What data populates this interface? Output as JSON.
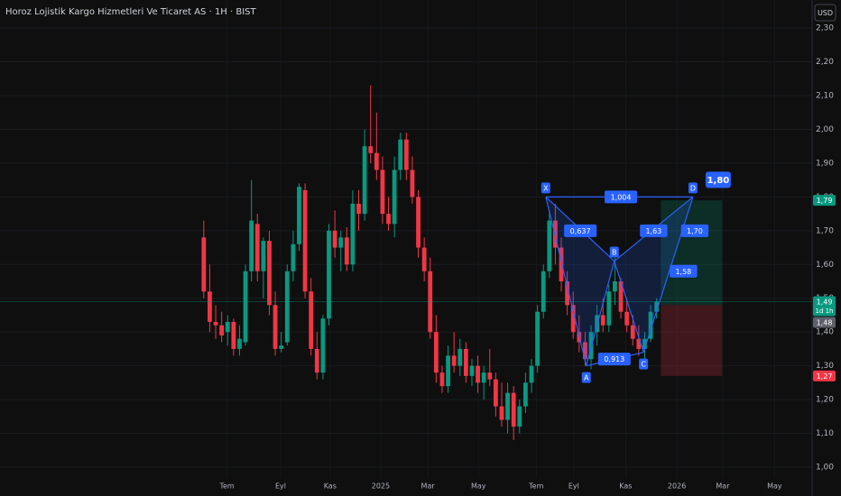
{
  "chart_data": {
    "type": "candlestick",
    "title": "Horoz Lojistik Kargo Hizmetleri Ve Ticaret AS · 1H · BIST",
    "currency": "USD",
    "up_color": "#089981",
    "down_color": "#f23645",
    "xlim": [
      -34.2,
      102.1
    ],
    "ylim": [
      0.968,
      2.383
    ],
    "grid": true,
    "x": [
      0,
      1,
      2,
      3,
      4,
      5,
      6,
      7,
      8,
      9,
      10,
      11,
      12,
      13,
      14,
      15,
      16,
      17,
      18,
      19,
      20,
      21,
      22,
      23,
      24,
      25,
      26,
      27,
      28,
      29,
      30,
      31,
      32,
      33,
      34,
      35,
      36,
      37,
      38,
      39,
      40,
      41,
      42,
      43,
      44,
      45,
      46,
      47,
      48,
      49,
      50,
      51,
      52,
      53,
      54,
      55,
      56,
      57,
      58,
      59,
      60,
      61,
      62,
      63,
      64,
      65,
      66,
      67,
      68,
      69,
      70,
      71,
      72,
      73,
      74,
      75,
      76
    ],
    "open": [
      1.68,
      1.52,
      1.43,
      1.42,
      1.4,
      1.43,
      1.35,
      1.37,
      1.58,
      1.72,
      1.58,
      1.67,
      1.48,
      1.35,
      1.37,
      1.58,
      1.66,
      1.82,
      1.52,
      1.35,
      1.28,
      1.44,
      1.7,
      1.65,
      1.68,
      1.6,
      1.78,
      1.75,
      1.95,
      1.93,
      1.88,
      1.75,
      1.72,
      1.88,
      1.97,
      1.88,
      1.8,
      1.65,
      1.58,
      1.4,
      1.28,
      1.24,
      1.33,
      1.3,
      1.35,
      1.27,
      1.3,
      1.25,
      1.28,
      1.26,
      1.18,
      1.14,
      1.22,
      1.12,
      1.18,
      1.25,
      1.3,
      1.46,
      1.58,
      1.73,
      1.65,
      1.55,
      1.48,
      1.4,
      1.37,
      1.32,
      1.4,
      1.45,
      1.42,
      1.52,
      1.55,
      1.46,
      1.42,
      1.38,
      1.35,
      1.38,
      1.46
    ],
    "high": [
      1.73,
      1.6,
      1.48,
      1.46,
      1.45,
      1.44,
      1.42,
      1.6,
      1.85,
      1.75,
      1.68,
      1.7,
      1.52,
      1.4,
      1.6,
      1.7,
      1.84,
      1.84,
      1.56,
      1.4,
      1.45,
      1.72,
      1.76,
      1.7,
      1.71,
      1.82,
      1.82,
      2.0,
      2.13,
      2.05,
      1.92,
      1.8,
      1.92,
      1.99,
      1.99,
      1.92,
      1.82,
      1.68,
      1.62,
      1.45,
      1.3,
      1.36,
      1.4,
      1.38,
      1.37,
      1.32,
      1.33,
      1.3,
      1.35,
      1.28,
      1.25,
      1.25,
      1.24,
      1.2,
      1.28,
      1.32,
      1.48,
      1.6,
      1.76,
      1.78,
      1.68,
      1.58,
      1.52,
      1.45,
      1.4,
      1.42,
      1.48,
      1.5,
      1.54,
      1.62,
      1.56,
      1.5,
      1.45,
      1.42,
      1.4,
      1.48,
      1.5
    ],
    "low": [
      1.5,
      1.4,
      1.38,
      1.37,
      1.36,
      1.33,
      1.33,
      1.36,
      1.55,
      1.55,
      1.5,
      1.45,
      1.33,
      1.34,
      1.36,
      1.55,
      1.64,
      1.5,
      1.33,
      1.26,
      1.26,
      1.42,
      1.62,
      1.58,
      1.58,
      1.58,
      1.7,
      1.73,
      1.9,
      1.85,
      1.72,
      1.7,
      1.68,
      1.85,
      1.85,
      1.78,
      1.62,
      1.55,
      1.38,
      1.25,
      1.22,
      1.22,
      1.28,
      1.27,
      1.25,
      1.24,
      1.22,
      1.2,
      1.24,
      1.15,
      1.12,
      1.1,
      1.08,
      1.1,
      1.16,
      1.22,
      1.28,
      1.44,
      1.56,
      1.6,
      1.52,
      1.45,
      1.38,
      1.34,
      1.3,
      1.29,
      1.36,
      1.4,
      1.4,
      1.48,
      1.44,
      1.4,
      1.36,
      1.33,
      1.32,
      1.37,
      1.44
    ],
    "close": [
      1.52,
      1.43,
      1.42,
      1.39,
      1.43,
      1.35,
      1.38,
      1.58,
      1.73,
      1.58,
      1.67,
      1.48,
      1.35,
      1.36,
      1.58,
      1.66,
      1.83,
      1.52,
      1.35,
      1.28,
      1.44,
      1.7,
      1.65,
      1.68,
      1.6,
      1.78,
      1.75,
      1.95,
      1.93,
      1.88,
      1.75,
      1.72,
      1.88,
      1.97,
      1.88,
      1.8,
      1.65,
      1.58,
      1.4,
      1.28,
      1.24,
      1.33,
      1.3,
      1.35,
      1.27,
      1.3,
      1.25,
      1.28,
      1.26,
      1.18,
      1.14,
      1.22,
      1.12,
      1.18,
      1.25,
      1.3,
      1.46,
      1.58,
      1.73,
      1.65,
      1.55,
      1.48,
      1.4,
      1.37,
      1.32,
      1.4,
      1.45,
      1.42,
      1.52,
      1.55,
      1.46,
      1.42,
      1.38,
      1.35,
      1.38,
      1.46,
      1.49
    ],
    "xticks": [
      {
        "value": 3.9,
        "label": "Tem"
      },
      {
        "value": 12.9,
        "label": "Eyl"
      },
      {
        "value": 21.2,
        "label": "Kas"
      },
      {
        "value": 29.7,
        "label": "2025"
      },
      {
        "value": 37.6,
        "label": "Mar"
      },
      {
        "value": 46.1,
        "label": "May"
      },
      {
        "value": 55.8,
        "label": "Tem"
      },
      {
        "value": 62.1,
        "label": "Eyl"
      },
      {
        "value": 70.8,
        "label": "Kas"
      },
      {
        "value": 79.4,
        "label": "2026"
      },
      {
        "value": 87.1,
        "label": "Mar"
      },
      {
        "value": 95.8,
        "label": "May"
      }
    ],
    "yticks": [
      {
        "value": 1.0,
        "label": "1,00"
      },
      {
        "value": 1.1,
        "label": "1,10"
      },
      {
        "value": 1.2,
        "label": "1,20"
      },
      {
        "value": 1.3,
        "label": "1,30"
      },
      {
        "value": 1.4,
        "label": "1,40"
      },
      {
        "value": 1.5,
        "label": "1,50"
      },
      {
        "value": 1.6,
        "label": "1,60"
      },
      {
        "value": 1.7,
        "label": "1,70"
      },
      {
        "value": 1.8,
        "label": "1,80"
      },
      {
        "value": 1.9,
        "label": "1,90"
      },
      {
        "value": 2.0,
        "label": "2,00"
      },
      {
        "value": 2.1,
        "label": "2,10"
      },
      {
        "value": 2.2,
        "label": "2,20"
      },
      {
        "value": 2.3,
        "label": "2,30"
      }
    ],
    "pattern": {
      "color": "#2962ff",
      "points": [
        {
          "name": "X",
          "x": 57.4,
          "y": 1.8
        },
        {
          "name": "A",
          "x": 64.2,
          "y": 1.3
        },
        {
          "name": "B",
          "x": 68.9,
          "y": 1.61
        },
        {
          "name": "C",
          "x": 73.8,
          "y": 1.34
        },
        {
          "name": "D",
          "x": 82.1,
          "y": 1.8
        }
      ],
      "ratios": [
        {
          "value": 1.004,
          "label": "1,004",
          "x": 70.0,
          "y": 1.8
        },
        {
          "value": 0.637,
          "label": "0,637",
          "x": 63.2,
          "y": 1.7
        },
        {
          "value": 1.63,
          "label": "1,63",
          "x": 75.5,
          "y": 1.7
        },
        {
          "value": 0.913,
          "label": "0,913",
          "x": 68.9,
          "y": 1.32
        },
        {
          "value": 1.7,
          "label": "1,70",
          "x": 82.4,
          "y": 1.7
        },
        {
          "value": 1.58,
          "label": "1,58",
          "x": 80.5,
          "y": 1.58
        }
      ],
      "target": {
        "value": 1.8,
        "label": "1,80"
      }
    },
    "position": {
      "x": [
        76.7,
        87.0
      ],
      "entry": 1.48,
      "target": 1.79,
      "stop": 1.27
    },
    "price_labels": [
      {
        "value": 1.79,
        "label": "1,79",
        "color": "#089981"
      },
      {
        "value": 1.49,
        "label": "1,49",
        "note": "1d 1h",
        "color": "#089981"
      },
      {
        "value": 1.48,
        "label": "1,48",
        "color": "#5d606b"
      },
      {
        "value": 1.27,
        "label": "1,27",
        "color": "#f23645"
      }
    ]
  }
}
